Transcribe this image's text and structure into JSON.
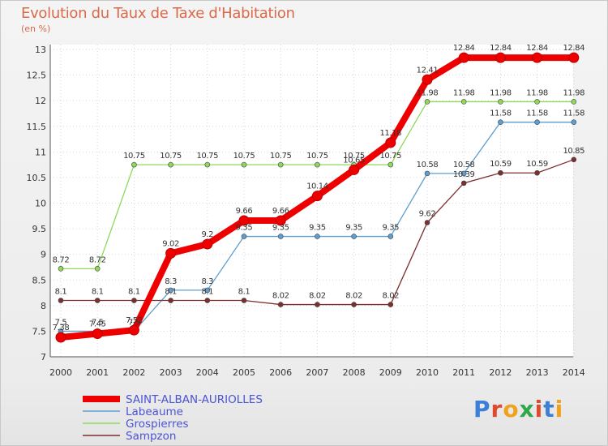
{
  "chart_data": {
    "type": "line",
    "title": "Evolution du Taux de Taxe d'Habitation",
    "ylabel": "(en %)",
    "x": [
      "2000",
      "2001",
      "2002",
      "2003",
      "2004",
      "2005",
      "2006",
      "2007",
      "2008",
      "2009",
      "2010",
      "2011",
      "2012",
      "2013",
      "2014"
    ],
    "ylim": [
      7,
      13
    ],
    "yticks": [
      "7",
      "7.5",
      "8",
      "8.5",
      "9",
      "9.5",
      "10",
      "10.5",
      "11",
      "11.5",
      "12",
      "12.5",
      "13"
    ],
    "grid": true,
    "legend_position": "bottom-left",
    "series": [
      {
        "name": "SAINT-ALBAN-AURIOLLES",
        "color": "#ee0000",
        "emphasis": true,
        "values": [
          7.38,
          7.45,
          7.52,
          9.02,
          9.2,
          9.66,
          9.66,
          10.14,
          10.65,
          11.18,
          12.41,
          12.84,
          12.84,
          12.84,
          12.84
        ],
        "labels": [
          "7.38",
          "7.45",
          "7.52",
          "9.02",
          "9.2",
          "9.66",
          "9.66",
          "10.14",
          "10.65",
          "11.18",
          "12.41",
          "12.84",
          "12.84",
          "12.84",
          "12.84"
        ]
      },
      {
        "name": "Labeaume",
        "color": "#5f9ed0",
        "values": [
          7.5,
          7.5,
          7.5,
          8.3,
          8.3,
          9.35,
          9.35,
          9.35,
          9.35,
          9.35,
          10.58,
          10.58,
          11.58,
          11.58,
          11.58
        ],
        "labels": [
          "7.5",
          "7.5",
          "7.5",
          "8.3",
          "8.3",
          "9.35",
          "9.35",
          "9.35",
          "9.35",
          "9.35",
          "10.58",
          "10.58",
          "11.58",
          "11.58",
          "11.58"
        ]
      },
      {
        "name": "Grospierres",
        "color": "#8fd85a",
        "values": [
          8.72,
          8.72,
          10.75,
          10.75,
          10.75,
          10.75,
          10.75,
          10.75,
          10.75,
          10.75,
          11.98,
          11.98,
          11.98,
          11.98,
          11.98
        ],
        "labels": [
          "8.72",
          "8.72",
          "10.75",
          "10.75",
          "10.75",
          "10.75",
          "10.75",
          "10.75",
          "10.75",
          "10.75",
          "11.98",
          "11.98",
          "11.98",
          "11.98",
          "11.98"
        ]
      },
      {
        "name": "Sampzon",
        "color": "#7d2f2f",
        "values": [
          8.1,
          8.1,
          8.1,
          8.1,
          8.1,
          8.1,
          8.02,
          8.02,
          8.02,
          8.02,
          9.62,
          10.39,
          10.59,
          10.59,
          10.85
        ],
        "labels": [
          "8.1",
          "8.1",
          "8.1",
          "8.1",
          "8.1",
          "8.1",
          "8.02",
          "8.02",
          "8.02",
          "8.02",
          "9.62",
          "10.39",
          "10.59",
          "10.59",
          "10.85"
        ]
      }
    ]
  },
  "brand": {
    "name": "Proxiti",
    "letters": [
      "P",
      "r",
      "o",
      "x",
      "i",
      "t",
      "i"
    ],
    "colors": [
      "#3c7fd6",
      "#e0492c",
      "#f0a21a",
      "#2fa84a",
      "#e0492c",
      "#3c7fd6",
      "#f0a21a"
    ]
  }
}
